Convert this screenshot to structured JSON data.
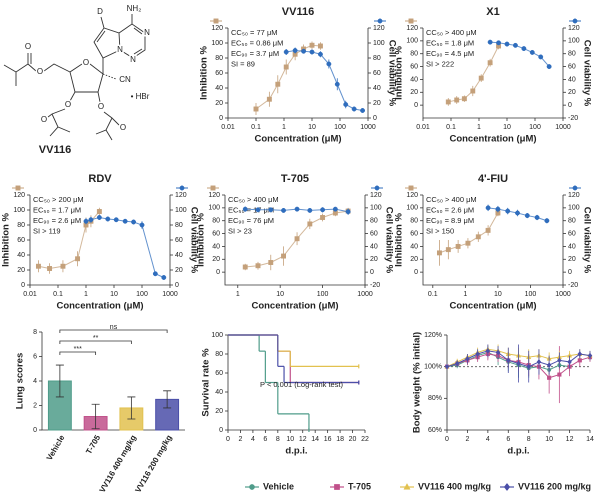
{
  "structure": {
    "name": "VV116",
    "labels": [
      "D",
      "NH₂",
      "N",
      "N",
      "N",
      "O",
      "O",
      "O",
      "O",
      "O",
      "O",
      "O",
      "CN",
      "• HBr"
    ]
  },
  "chart_data": [
    {
      "type": "dose_response",
      "title": "VV116",
      "xlabel": "Concentration (μM)",
      "ylabel": "Inhibition %",
      "y2label": "Cell viability %",
      "xscale": "log",
      "xlim": [
        0.01,
        1000
      ],
      "xticks": [
        0.01,
        0.1,
        1,
        10,
        100,
        1000
      ],
      "ylim": [
        0,
        120
      ],
      "yticks": [
        0,
        20,
        40,
        60,
        80,
        100,
        120
      ],
      "y2lim": [
        0,
        120
      ],
      "y2ticks": [
        0,
        20,
        40,
        60,
        80,
        100,
        120
      ],
      "annotations": [
        "CC₅₀ = 77 μM",
        "EC₅₀ = 0.86 μM",
        "EC₉₀ = 3.7 μM",
        "SI = 89"
      ],
      "series": [
        {
          "color": "#c4a07a",
          "marker": "square",
          "x": [
            0.1,
            0.3,
            0.6,
            1.2,
            2.5,
            5,
            10,
            20
          ],
          "values": [
            12,
            25,
            45,
            68,
            85,
            92,
            97,
            96
          ],
          "errors": [
            8,
            10,
            12,
            10,
            8,
            6,
            5,
            5
          ]
        },
        {
          "color": "#2f6dbd",
          "marker": "circle",
          "axis": "y2",
          "x": [
            1.2,
            2.5,
            5,
            10,
            20,
            40,
            80,
            160,
            320,
            640
          ],
          "values": [
            88,
            90,
            89,
            88,
            85,
            72,
            45,
            18,
            12,
            10
          ],
          "errors": [
            4,
            4,
            3,
            3,
            4,
            6,
            8,
            5,
            3,
            2
          ]
        }
      ]
    },
    {
      "type": "dose_response",
      "title": "X1",
      "xlabel": "Concentration (μM)",
      "ylabel": "Inhibition %",
      "y2label": "Cell viability %",
      "xscale": "log",
      "xlim": [
        0.01,
        1000
      ],
      "xticks": [
        0.01,
        0.1,
        1,
        10,
        100,
        1000
      ],
      "ylim": [
        -20,
        120
      ],
      "yticks": [
        0,
        20,
        40,
        60,
        80,
        100,
        120
      ],
      "y2lim": [
        -20,
        120
      ],
      "y2ticks": [
        -20,
        0,
        20,
        40,
        60,
        80,
        100,
        120
      ],
      "annotations": [
        "CC₅₀ > 400 μM",
        "EC₅₀ = 1.8 μM",
        "EC₉₀ = 4.5 μM",
        "SI > 222"
      ],
      "series": [
        {
          "color": "#c4a07a",
          "marker": "square",
          "x": [
            0.08,
            0.16,
            0.3,
            0.6,
            1.2,
            2.5,
            5
          ],
          "values": [
            5,
            8,
            10,
            22,
            42,
            66,
            92
          ],
          "errors": [
            6,
            6,
            5,
            8,
            6,
            6,
            5
          ]
        },
        {
          "color": "#2f6dbd",
          "marker": "circle",
          "axis": "y2",
          "x": [
            2.5,
            5,
            10,
            20,
            40,
            80,
            160,
            320
          ],
          "values": [
            98,
            97,
            95,
            93,
            88,
            82,
            75,
            60
          ],
          "errors": [
            3,
            3,
            3,
            3,
            3,
            3,
            3,
            3
          ]
        }
      ]
    },
    {
      "type": "dose_response",
      "title": "RDV",
      "xlabel": "Concentration (μM)",
      "ylabel": "Inhibition %",
      "y2label": "Cell viability %",
      "xscale": "log",
      "xlim": [
        0.01,
        1000
      ],
      "xticks": [
        0.01,
        0.1,
        1,
        10,
        100,
        1000
      ],
      "ylim": [
        0,
        120
      ],
      "yticks": [
        0,
        20,
        40,
        60,
        80,
        100,
        120
      ],
      "y2lim": [
        0,
        120
      ],
      "y2ticks": [
        0,
        20,
        40,
        60,
        80,
        100,
        120
      ],
      "annotations": [
        "CC₅₀ > 200 μM",
        "EC₅₀ = 1.7 μM",
        "EC₉₀ = 2.6 μM",
        "SI > 119"
      ],
      "series": [
        {
          "color": "#c4a07a",
          "marker": "square",
          "x": [
            0.02,
            0.05,
            0.15,
            0.5,
            1,
            1.5,
            3
          ],
          "values": [
            25,
            22,
            25,
            35,
            80,
            85,
            98
          ],
          "errors": [
            8,
            7,
            8,
            10,
            10,
            8,
            5
          ]
        },
        {
          "color": "#2f6dbd",
          "marker": "circle",
          "axis": "y2",
          "x": [
            1,
            1.5,
            3,
            6,
            12,
            25,
            50,
            100,
            300,
            600
          ],
          "values": [
            85,
            87,
            90,
            88,
            87,
            85,
            84,
            80,
            15,
            10
          ],
          "errors": [
            4,
            4,
            3,
            3,
            3,
            3,
            3,
            5,
            3,
            2
          ]
        }
      ]
    },
    {
      "type": "dose_response",
      "title": "T-705",
      "xlabel": "Concentration (μM)",
      "ylabel": "Inhibition %",
      "y2label": "Cell viability %",
      "xscale": "log",
      "xlim": [
        0.5,
        1000
      ],
      "xticks": [
        1,
        10,
        100,
        1000
      ],
      "ylim": [
        -20,
        120
      ],
      "yticks": [
        0,
        20,
        40,
        60,
        80,
        100,
        120
      ],
      "y2lim": [
        -20,
        120
      ],
      "y2ticks": [
        -20,
        0,
        20,
        40,
        60,
        80,
        100,
        120
      ],
      "annotations": [
        "CC₅₀ > 400 μM",
        "EC₅₀ = 17 μM",
        "EC₉₀ = 76 μM",
        "SI > 23"
      ],
      "series": [
        {
          "color": "#c4a07a",
          "marker": "square",
          "x": [
            1.5,
            3,
            6,
            12,
            25,
            50,
            100,
            200,
            400
          ],
          "values": [
            8,
            10,
            15,
            25,
            52,
            75,
            85,
            92,
            95
          ],
          "errors": [
            5,
            6,
            12,
            15,
            10,
            8,
            6,
            5,
            5
          ]
        },
        {
          "color": "#2f6dbd",
          "marker": "circle",
          "axis": "y2",
          "x": [
            1.5,
            3,
            6,
            12,
            25,
            50,
            100,
            200,
            400
          ],
          "values": [
            98,
            97,
            97,
            96,
            98,
            96,
            97,
            98,
            94
          ],
          "errors": [
            4,
            3,
            3,
            3,
            3,
            3,
            4,
            3,
            5
          ]
        }
      ]
    },
    {
      "type": "dose_response",
      "title": "4'-FIU",
      "xlabel": "Concentration (μM)",
      "ylabel": "Inhibition %",
      "y2label": "Cell viability %",
      "xscale": "log",
      "xlim": [
        0.05,
        1000
      ],
      "xticks": [
        0.1,
        1,
        10,
        100,
        1000
      ],
      "ylim": [
        -20,
        120
      ],
      "yticks": [
        0,
        20,
        40,
        60,
        80,
        100,
        120
      ],
      "y2lim": [
        -20,
        120
      ],
      "y2ticks": [
        -20,
        0,
        20,
        40,
        60,
        80,
        100,
        120
      ],
      "annotations": [
        "CC₅₀ > 400 μM",
        "EC₅₀ = 2.6 μM",
        "EC₉₀ = 8.9 μM",
        "SI > 150"
      ],
      "series": [
        {
          "color": "#c4a07a",
          "marker": "square",
          "x": [
            0.16,
            0.3,
            0.6,
            1.2,
            2.5,
            5,
            10
          ],
          "values": [
            30,
            35,
            40,
            45,
            55,
            65,
            92
          ],
          "errors": [
            20,
            15,
            10,
            8,
            8,
            8,
            5
          ]
        },
        {
          "color": "#2f6dbd",
          "marker": "circle",
          "axis": "y2",
          "x": [
            5,
            10,
            20,
            40,
            80,
            160,
            320
          ],
          "values": [
            100,
            98,
            95,
            92,
            88,
            85,
            80
          ],
          "errors": [
            5,
            5,
            5,
            5,
            4,
            4,
            4
          ]
        }
      ]
    },
    {
      "type": "bar",
      "ylabel": "Lung scores",
      "categories": [
        "Vehicle",
        "T-705",
        "VV116 400 mg/kg",
        "VV116 200 mg/kg"
      ],
      "values": [
        4.0,
        1.1,
        1.8,
        2.5
      ],
      "errors": [
        1.3,
        1.0,
        0.9,
        0.7
      ],
      "colors": [
        "#4f9c8a",
        "#c0508a",
        "#e2c14f",
        "#4b4fa8"
      ],
      "ylim": [
        0,
        8
      ],
      "yticks": [
        0,
        2,
        4,
        6,
        8
      ],
      "comparisons": [
        {
          "from": 0,
          "to": 1,
          "label": "***"
        },
        {
          "from": 0,
          "to": 2,
          "label": "**"
        },
        {
          "from": 0,
          "to": 3,
          "label": "ns"
        }
      ]
    },
    {
      "type": "step",
      "ylabel": "Survival rate %",
      "xlabel": "d.p.i.",
      "xlim": [
        0,
        22
      ],
      "xticks": [
        0,
        2,
        4,
        6,
        8,
        10,
        12,
        14,
        16,
        18,
        20,
        22
      ],
      "ylim": [
        0,
        100
      ],
      "yticks": [
        0,
        20,
        40,
        60,
        80,
        100
      ],
      "annotation": "P < 0.001 (Log-rank test)",
      "series": [
        {
          "name": "Vehicle",
          "color": "#4f9c8a",
          "marker": "circle",
          "x": [
            0,
            5,
            6,
            8,
            13
          ],
          "values": [
            100,
            83,
            50,
            17,
            0
          ]
        },
        {
          "name": "T-705",
          "color": "#c0508a",
          "marker": "square",
          "x": [
            0,
            8,
            10,
            21
          ],
          "values": [
            100,
            83,
            50,
            50
          ]
        },
        {
          "name": "VV116 400 mg/kg",
          "color": "#e2c14f",
          "marker": "triangle",
          "x": [
            0,
            8,
            10,
            21
          ],
          "values": [
            100,
            83,
            67,
            67
          ]
        },
        {
          "name": "VV116 200 mg/kg",
          "color": "#4b4fa8",
          "marker": "diamond",
          "x": [
            0,
            8,
            9,
            21
          ],
          "values": [
            100,
            67,
            50,
            50
          ]
        }
      ]
    },
    {
      "type": "line",
      "ylabel": "Body weight (% initial)",
      "xlabel": "d.p.i.",
      "x": [
        0,
        1,
        2,
        3,
        4,
        5,
        6,
        7,
        8,
        9,
        10,
        11,
        12,
        13,
        14
      ],
      "xlim": [
        0,
        14
      ],
      "xticks": [
        0,
        2,
        4,
        6,
        8,
        10,
        12,
        14
      ],
      "ylim": [
        60,
        120
      ],
      "yticks": [
        {
          "value": 60,
          "label": "60%"
        },
        {
          "value": 80,
          "label": "80%"
        },
        {
          "value": 100,
          "label": "100%"
        },
        {
          "value": 120,
          "label": "120%"
        }
      ],
      "hline": 100,
      "series": [
        {
          "color": "#4f9c8a",
          "marker": "circle",
          "values": [
            100,
            101,
            104,
            107,
            109,
            106,
            103,
            101,
            99,
            100,
            98,
            101,
            100,
            null,
            null
          ],
          "errors": [
            1,
            2,
            3,
            3,
            4,
            5,
            6,
            8,
            6,
            5,
            4,
            3,
            3,
            null,
            null
          ]
        },
        {
          "color": "#c0508a",
          "marker": "square",
          "values": [
            100,
            102,
            104,
            106,
            108,
            107,
            104,
            103,
            101,
            100,
            93,
            95,
            100,
            104,
            106
          ],
          "errors": [
            1,
            2,
            3,
            3,
            4,
            4,
            5,
            6,
            7,
            8,
            10,
            18,
            6,
            4,
            3
          ]
        },
        {
          "color": "#e2c14f",
          "marker": "triangle",
          "values": [
            100,
            103,
            106,
            109,
            111,
            110,
            108,
            107,
            106,
            107,
            105,
            106,
            107,
            108,
            107
          ],
          "errors": [
            1,
            2,
            2,
            3,
            3,
            4,
            4,
            5,
            5,
            4,
            4,
            4,
            3,
            3,
            3
          ]
        },
        {
          "color": "#4b4fa8",
          "marker": "diamond",
          "values": [
            100,
            102,
            105,
            108,
            110,
            109,
            104,
            102,
            100,
            103,
            101,
            104,
            103,
            108,
            107
          ],
          "errors": [
            1,
            2,
            3,
            3,
            4,
            4,
            8,
            12,
            10,
            8,
            6,
            5,
            4,
            3,
            3
          ]
        }
      ]
    }
  ]
}
